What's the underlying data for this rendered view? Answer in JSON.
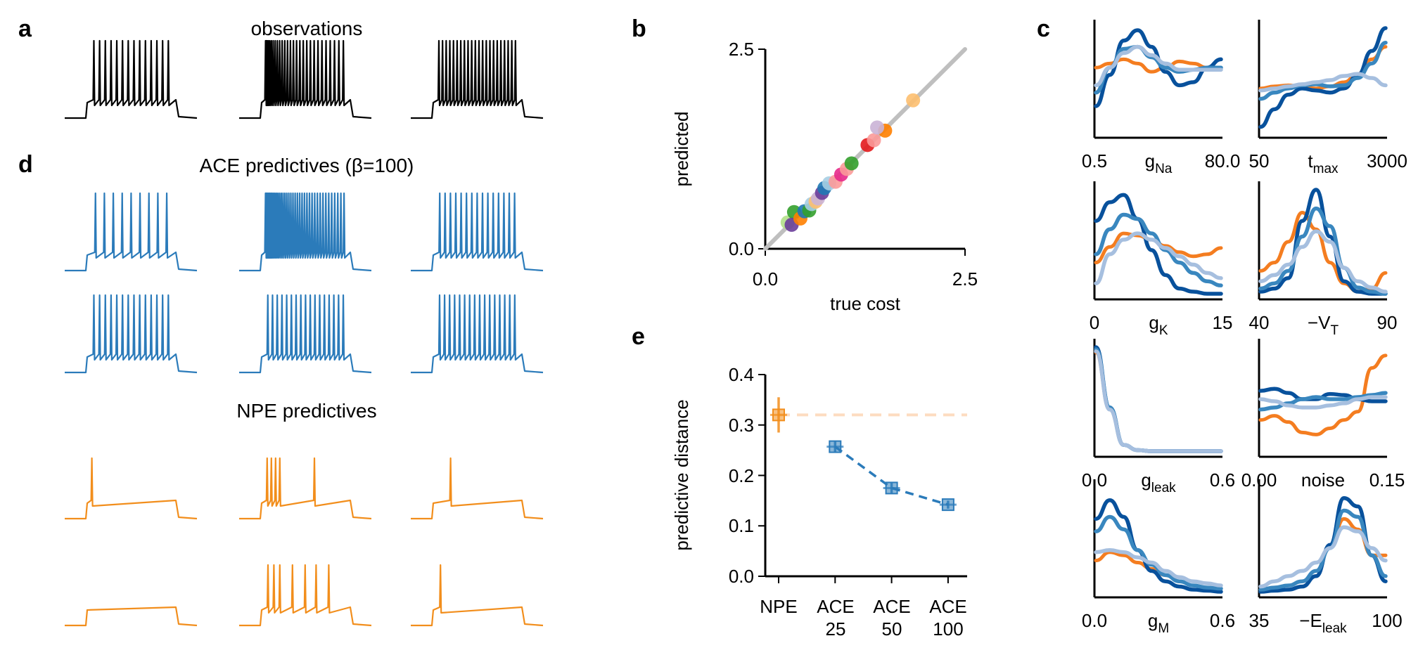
{
  "panel_labels": {
    "a": "a",
    "b": "b",
    "c": "c",
    "d": "d",
    "e": "e"
  },
  "titles": {
    "observations": "observations",
    "ace": "ACE predictives (β=100)",
    "npe": "NPE predictives"
  },
  "colors": {
    "black": "#000000",
    "blue": "#2b7bba",
    "orange": "#f28e1c",
    "gray": "#bfbfbf",
    "peach": "#fddcc0",
    "marginal_orange": "#f47d20",
    "marginal_dark": "#08519c",
    "marginal_mid": "#3987bf",
    "marginal_light": "#a6bfdf"
  },
  "traces": {
    "observations": [
      {
        "kind": "regular",
        "spikes": 14
      },
      {
        "kind": "burst",
        "spikes": 28
      },
      {
        "kind": "regular",
        "spikes": 22
      }
    ],
    "ace": [
      {
        "kind": "regular",
        "spikes": 9
      },
      {
        "kind": "burst",
        "spikes": 40
      },
      {
        "kind": "regular",
        "spikes": 15
      },
      {
        "kind": "regular",
        "spikes": 14
      },
      {
        "kind": "regular",
        "spikes": 17
      },
      {
        "kind": "regular",
        "spikes": 16
      }
    ],
    "npe": [
      {
        "kind": "npe",
        "spike_times": [
          0.03
        ]
      },
      {
        "kind": "npe",
        "spike_times": [
          0.04,
          0.09,
          0.14,
          0.19,
          0.6
        ]
      },
      {
        "kind": "npe",
        "spike_times": [
          0.18
        ]
      },
      {
        "kind": "npe",
        "spike_times": []
      },
      {
        "kind": "npe",
        "spike_times": [
          0.05,
          0.12,
          0.19,
          0.34,
          0.49,
          0.62,
          0.77
        ]
      },
      {
        "kind": "npe",
        "spike_times": [
          0.06
        ]
      }
    ]
  },
  "chart_data": [
    {
      "id": "b",
      "type": "scatter",
      "xlabel": "true cost",
      "ylabel": "predicted",
      "xlim": [
        0,
        2.5
      ],
      "ylim": [
        0,
        2.5
      ],
      "xticks": [
        "0.0",
        "2.5"
      ],
      "yticks": [
        "0.0",
        "2.5"
      ],
      "identity_line": true,
      "points": [
        {
          "x": 0.28,
          "y": 0.33,
          "color": "#b2df8a"
        },
        {
          "x": 0.36,
          "y": 0.46,
          "color": "#33a02c"
        },
        {
          "x": 0.33,
          "y": 0.3,
          "color": "#6a3d9a"
        },
        {
          "x": 0.44,
          "y": 0.38,
          "color": "#ff7f00"
        },
        {
          "x": 0.49,
          "y": 0.47,
          "color": "#1f78b4"
        },
        {
          "x": 0.55,
          "y": 0.48,
          "color": "#33a02c"
        },
        {
          "x": 0.58,
          "y": 0.56,
          "color": "#a6cee3"
        },
        {
          "x": 0.63,
          "y": 0.59,
          "color": "#fdbf6f"
        },
        {
          "x": 0.66,
          "y": 0.63,
          "color": "#cab2d6"
        },
        {
          "x": 0.71,
          "y": 0.7,
          "color": "#6a3d9a"
        },
        {
          "x": 0.74,
          "y": 0.76,
          "color": "#1f78b4"
        },
        {
          "x": 0.8,
          "y": 0.82,
          "color": "#a6cee3"
        },
        {
          "x": 0.88,
          "y": 0.84,
          "color": "#fb9a99"
        },
        {
          "x": 0.95,
          "y": 0.93,
          "color": "#e7298a"
        },
        {
          "x": 1.02,
          "y": 1.0,
          "color": "#fb9a99"
        },
        {
          "x": 1.08,
          "y": 1.07,
          "color": "#33a02c"
        },
        {
          "x": 1.28,
          "y": 1.3,
          "color": "#e31a1c"
        },
        {
          "x": 1.36,
          "y": 1.36,
          "color": "#fb9a99"
        },
        {
          "x": 1.5,
          "y": 1.48,
          "color": "#ff7f00"
        },
        {
          "x": 1.4,
          "y": 1.52,
          "color": "#cab2d6"
        },
        {
          "x": 1.85,
          "y": 1.86,
          "color": "#fdbf6f"
        }
      ]
    },
    {
      "id": "e",
      "type": "scatter",
      "ylabel": "predictive distance",
      "categories": [
        "NPE",
        "ACE\n25",
        "ACE\n50",
        "ACE\n100"
      ],
      "ylim": [
        0,
        0.4
      ],
      "yticks": [
        "0.0",
        "0.1",
        "0.2",
        "0.3",
        "0.4"
      ],
      "series": [
        {
          "name": "NPE",
          "color": "#f28e1c",
          "values": [
            0.32
          ],
          "err": [
            0.035
          ],
          "positions": [
            0
          ],
          "reference_line": 0.32
        },
        {
          "name": "ACE",
          "color": "#2b7bba",
          "values": [
            0.257,
            0.175,
            0.142
          ],
          "err": [
            0.012,
            0.01,
            0.008
          ],
          "positions": [
            1,
            2,
            3
          ],
          "dashed": true
        }
      ]
    },
    {
      "id": "c",
      "type": "line",
      "description": "posterior marginals",
      "series_colors": [
        "#f47d20",
        "#08519c",
        "#3987bf",
        "#a6bfdf"
      ],
      "panels": [
        {
          "name": "g",
          "sub": "Na",
          "xlim": [
            "0.5",
            "80.0"
          ],
          "curves": [
            [
              0.62,
              0.66,
              0.7,
              0.66,
              0.58,
              0.62,
              0.68,
              0.66,
              0.62,
              0.6
            ],
            [
              0.25,
              0.55,
              0.88,
              0.98,
              0.82,
              0.58,
              0.45,
              0.48,
              0.62,
              0.7
            ],
            [
              0.38,
              0.62,
              0.8,
              0.82,
              0.72,
              0.62,
              0.58,
              0.6,
              0.62,
              0.62
            ],
            [
              0.45,
              0.62,
              0.76,
              0.82,
              0.74,
              0.66,
              0.6,
              0.6,
              0.6,
              0.6
            ]
          ]
        },
        {
          "name": "t",
          "sub": "max",
          "xlim": [
            "50",
            "3000"
          ],
          "curves": [
            [
              0.42,
              0.44,
              0.45,
              0.44,
              0.42,
              0.44,
              0.48,
              0.56,
              0.7,
              0.82
            ],
            [
              0.05,
              0.22,
              0.36,
              0.42,
              0.4,
              0.38,
              0.42,
              0.55,
              0.78,
              1.0
            ],
            [
              0.32,
              0.38,
              0.42,
              0.45,
              0.46,
              0.44,
              0.45,
              0.52,
              0.66,
              0.86
            ],
            [
              0.4,
              0.42,
              0.44,
              0.46,
              0.48,
              0.5,
              0.54,
              0.56,
              0.52,
              0.45
            ]
          ]
        },
        {
          "name": "g",
          "sub": "K",
          "xlim": [
            "0",
            "15"
          ],
          "curves": [
            [
              0.3,
              0.45,
              0.58,
              0.56,
              0.52,
              0.46,
              0.4,
              0.36,
              0.38,
              0.44
            ],
            [
              0.7,
              0.88,
              0.95,
              0.72,
              0.42,
              0.18,
              0.05,
              0.02,
              0.0,
              0.0
            ],
            [
              0.38,
              0.62,
              0.76,
              0.72,
              0.58,
              0.42,
              0.3,
              0.2,
              0.12,
              0.08
            ],
            [
              0.1,
              0.38,
              0.52,
              0.58,
              0.52,
              0.44,
              0.36,
              0.28,
              0.2,
              0.15
            ]
          ]
        },
        {
          "name": "−V",
          "sub": "T",
          "xlim": [
            "40",
            "90"
          ],
          "curves": [
            [
              0.22,
              0.3,
              0.5,
              0.78,
              0.62,
              0.3,
              0.1,
              0.02,
              0.05,
              0.2
            ],
            [
              0.02,
              0.05,
              0.15,
              0.7,
              1.0,
              0.55,
              0.12,
              0.02,
              0.0,
              0.0
            ],
            [
              0.05,
              0.1,
              0.22,
              0.55,
              0.82,
              0.65,
              0.25,
              0.06,
              0.02,
              0.0
            ],
            [
              0.12,
              0.18,
              0.28,
              0.45,
              0.6,
              0.5,
              0.25,
              0.12,
              0.06,
              0.02
            ]
          ]
        },
        {
          "name": "g",
          "sub": "leak",
          "xlim": [
            "0.0",
            "0.6"
          ],
          "curves": [
            [
              0.95,
              0.4,
              0.06,
              0.01,
              0.0,
              0.0,
              0.0,
              0.0,
              0.0,
              0.0
            ],
            [
              1.0,
              0.42,
              0.06,
              0.01,
              0.0,
              0.0,
              0.0,
              0.0,
              0.0,
              0.0
            ],
            [
              0.98,
              0.42,
              0.06,
              0.01,
              0.0,
              0.0,
              0.0,
              0.0,
              0.0,
              0.0
            ],
            [
              0.96,
              0.4,
              0.06,
              0.01,
              0.0,
              0.0,
              0.0,
              0.0,
              0.0,
              0.0
            ]
          ]
        },
        {
          "name": "noise",
          "sub": "",
          "xlim": [
            "0.00",
            "0.15"
          ],
          "curves": [
            [
              0.3,
              0.34,
              0.28,
              0.18,
              0.16,
              0.22,
              0.3,
              0.38,
              0.8,
              0.92
            ],
            [
              0.58,
              0.6,
              0.56,
              0.5,
              0.5,
              0.55,
              0.54,
              0.5,
              0.48,
              0.48
            ],
            [
              0.4,
              0.42,
              0.46,
              0.5,
              0.52,
              0.5,
              0.5,
              0.52,
              0.54,
              0.56
            ],
            [
              0.5,
              0.48,
              0.44,
              0.42,
              0.42,
              0.44,
              0.46,
              0.5,
              0.52,
              0.52
            ]
          ]
        },
        {
          "name": "g",
          "sub": "M",
          "xlim": [
            "0.0",
            "0.6"
          ],
          "curves": [
            [
              0.3,
              0.38,
              0.35,
              0.28,
              0.22,
              0.16,
              0.1,
              0.06,
              0.04,
              0.03
            ],
            [
              0.7,
              0.88,
              0.72,
              0.4,
              0.2,
              0.1,
              0.05,
              0.02,
              0.01,
              0.0
            ],
            [
              0.58,
              0.72,
              0.6,
              0.4,
              0.26,
              0.16,
              0.1,
              0.06,
              0.04,
              0.03
            ],
            [
              0.38,
              0.4,
              0.38,
              0.33,
              0.28,
              0.2,
              0.14,
              0.1,
              0.08,
              0.06
            ]
          ]
        },
        {
          "name": "−E",
          "sub": "leak",
          "xlim": [
            "35",
            "100"
          ],
          "curves": [
            [
              0.02,
              0.04,
              0.06,
              0.1,
              0.2,
              0.42,
              0.7,
              0.6,
              0.35,
              0.35
            ],
            [
              0.0,
              0.01,
              0.02,
              0.05,
              0.15,
              0.45,
              0.9,
              0.82,
              0.35,
              0.1
            ],
            [
              0.02,
              0.04,
              0.06,
              0.1,
              0.2,
              0.42,
              0.78,
              0.72,
              0.35,
              0.15
            ],
            [
              0.05,
              0.1,
              0.15,
              0.2,
              0.28,
              0.42,
              0.62,
              0.58,
              0.42,
              0.3
            ]
          ]
        }
      ]
    }
  ],
  "axis_labels": {
    "b_x": "true cost",
    "b_y": "predicted",
    "e_y": "predictive distance"
  },
  "ticks": {
    "b_x0": "0.0",
    "b_x1": "2.5",
    "b_y0": "0.0",
    "b_y1": "2.5",
    "e_y0": "0.0",
    "e_y1": "0.1",
    "e_y2": "0.2",
    "e_y3": "0.3",
    "e_y4": "0.4",
    "e_c0": "NPE",
    "e_c1a": "ACE",
    "e_c1b": "25",
    "e_c2a": "ACE",
    "e_c2b": "50",
    "e_c3a": "ACE",
    "e_c3b": "100"
  },
  "marginal_labels": [
    {
      "left": "0.5",
      "name": "g",
      "sub": "Na",
      "right": "80.0"
    },
    {
      "left": "50",
      "name": "t",
      "sub": "max",
      "right": "3000"
    },
    {
      "left": "0",
      "name": "g",
      "sub": "K",
      "right": "15"
    },
    {
      "left": "40",
      "name": "−V",
      "sub": "T",
      "right": "90"
    },
    {
      "left": "0.0",
      "name": "g",
      "sub": "leak",
      "right": "0.6"
    },
    {
      "left": "0.00",
      "name": "noise",
      "sub": "",
      "right": "0.15"
    },
    {
      "left": "0.0",
      "name": "g",
      "sub": "M",
      "right": "0.6"
    },
    {
      "left": "35",
      "name": "−E",
      "sub": "leak",
      "right": "100"
    }
  ]
}
